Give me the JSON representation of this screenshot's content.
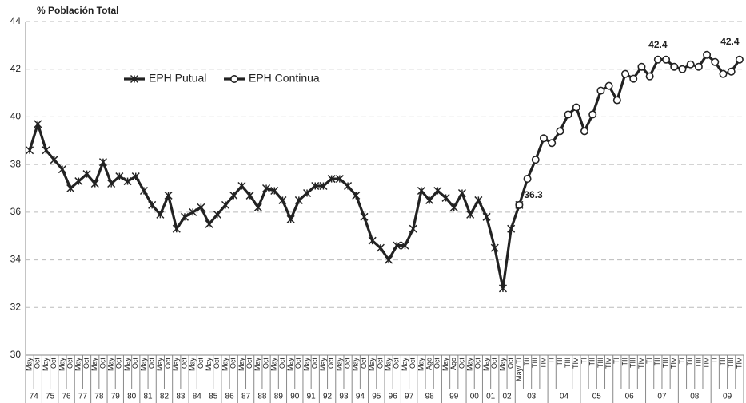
{
  "chart_data": {
    "type": "line",
    "y_axis_title": "% Población Total",
    "ylim": [
      30,
      44
    ],
    "yticks": [
      30,
      32,
      34,
      36,
      38,
      40,
      42,
      44
    ],
    "grid": true,
    "legend_position": "upper-left",
    "categories": [
      "May",
      "Oct",
      "May",
      "Oct",
      "May",
      "Oct",
      "May",
      "Oct",
      "May",
      "Oct",
      "May",
      "Oct",
      "May",
      "Oct",
      "May",
      "Oct",
      "May",
      "Oct",
      "May",
      "Oct",
      "May",
      "Oct",
      "May",
      "Oct",
      "May",
      "Oct",
      "May",
      "Oct",
      "May",
      "Oct",
      "May",
      "Oct",
      "May",
      "Oct",
      "May",
      "Oct",
      "May",
      "Oct",
      "May",
      "Oct",
      "May",
      "Oct",
      "May",
      "Oct",
      "May",
      "Oct",
      "May",
      "Oct",
      "May",
      "Ago",
      "Oct",
      "May",
      "Ago",
      "Oct",
      "May",
      "Oct",
      "May",
      "Oct",
      "May",
      "Oct",
      "May/ TI",
      "TII",
      "TIII",
      "TIV",
      "TI",
      "TII",
      "TIII",
      "TIV",
      "TI",
      "TII",
      "TIII",
      "TIV",
      "TI",
      "TII",
      "TIII",
      "TIV",
      "TI",
      "TII",
      "TIII",
      "TIV",
      "TI",
      "TII",
      "TIII",
      "TIV",
      "TI",
      "TII",
      "TIII",
      "TIV"
    ],
    "x_groups": [
      {
        "label": "74",
        "span": 2
      },
      {
        "label": "75",
        "span": 2
      },
      {
        "label": "76",
        "span": 2
      },
      {
        "label": "77",
        "span": 2
      },
      {
        "label": "78",
        "span": 2
      },
      {
        "label": "79",
        "span": 2
      },
      {
        "label": "80",
        "span": 2
      },
      {
        "label": "81",
        "span": 2
      },
      {
        "label": "82",
        "span": 2
      },
      {
        "label": "83",
        "span": 2
      },
      {
        "label": "84",
        "span": 2
      },
      {
        "label": "85",
        "span": 2
      },
      {
        "label": "86",
        "span": 2
      },
      {
        "label": "87",
        "span": 2
      },
      {
        "label": "88",
        "span": 2
      },
      {
        "label": "89",
        "span": 2
      },
      {
        "label": "90",
        "span": 2
      },
      {
        "label": "91",
        "span": 2
      },
      {
        "label": "92",
        "span": 2
      },
      {
        "label": "93",
        "span": 2
      },
      {
        "label": "94",
        "span": 2
      },
      {
        "label": "95",
        "span": 2
      },
      {
        "label": "96",
        "span": 2
      },
      {
        "label": "97",
        "span": 2
      },
      {
        "label": "98",
        "span": 3
      },
      {
        "label": "99",
        "span": 3
      },
      {
        "label": "00",
        "span": 2
      },
      {
        "label": "01",
        "span": 2
      },
      {
        "label": "02",
        "span": 2
      },
      {
        "label": "03",
        "span": 4
      },
      {
        "label": "04",
        "span": 4
      },
      {
        "label": "05",
        "span": 4
      },
      {
        "label": "06",
        "span": 4
      },
      {
        "label": "07",
        "span": 4
      },
      {
        "label": "08",
        "span": 4
      },
      {
        "label": "09",
        "span": 4
      }
    ],
    "series": [
      {
        "name": "EPH Putual",
        "color": "#222222",
        "marker": "asterisk",
        "values": [
          38.6,
          39.7,
          38.6,
          38.2,
          37.8,
          37.0,
          37.3,
          37.6,
          37.2,
          38.1,
          37.2,
          37.5,
          37.3,
          37.5,
          36.9,
          36.3,
          35.9,
          36.7,
          35.3,
          35.8,
          36.0,
          36.2,
          35.5,
          35.9,
          36.3,
          36.7,
          37.1,
          36.7,
          36.2,
          37.0,
          36.9,
          36.5,
          35.7,
          36.5,
          36.8,
          37.1,
          37.1,
          37.4,
          37.4,
          37.1,
          36.7,
          35.8,
          34.8,
          34.5,
          34.0,
          34.6,
          34.6,
          35.3,
          36.9,
          36.5,
          36.9,
          36.6,
          36.2,
          36.8,
          35.9,
          36.5,
          35.8,
          34.5,
          32.8,
          35.3,
          36.3,
          null,
          null,
          null,
          null,
          null,
          null,
          null,
          null,
          null,
          null,
          null,
          null,
          null,
          null,
          null,
          null,
          null,
          null,
          null,
          null,
          null,
          null,
          null,
          null,
          null,
          null,
          null
        ]
      },
      {
        "name": "EPH Continua",
        "color": "#222222",
        "marker": "circle",
        "labeled": [
          60,
          77,
          87
        ],
        "values": [
          null,
          null,
          null,
          null,
          null,
          null,
          null,
          null,
          null,
          null,
          null,
          null,
          null,
          null,
          null,
          null,
          null,
          null,
          null,
          null,
          null,
          null,
          null,
          null,
          null,
          null,
          null,
          null,
          null,
          null,
          null,
          null,
          null,
          null,
          null,
          null,
          null,
          null,
          null,
          null,
          null,
          null,
          null,
          null,
          null,
          null,
          null,
          null,
          null,
          null,
          null,
          null,
          null,
          null,
          null,
          null,
          null,
          null,
          null,
          null,
          36.3,
          37.4,
          38.2,
          39.1,
          38.9,
          39.4,
          40.1,
          40.4,
          39.4,
          40.1,
          41.1,
          41.3,
          40.7,
          41.8,
          41.6,
          42.1,
          41.7,
          42.4,
          42.4,
          42.1,
          42.0,
          42.2,
          42.1,
          42.6,
          42.3,
          41.8,
          41.9,
          42.4
        ]
      }
    ]
  }
}
